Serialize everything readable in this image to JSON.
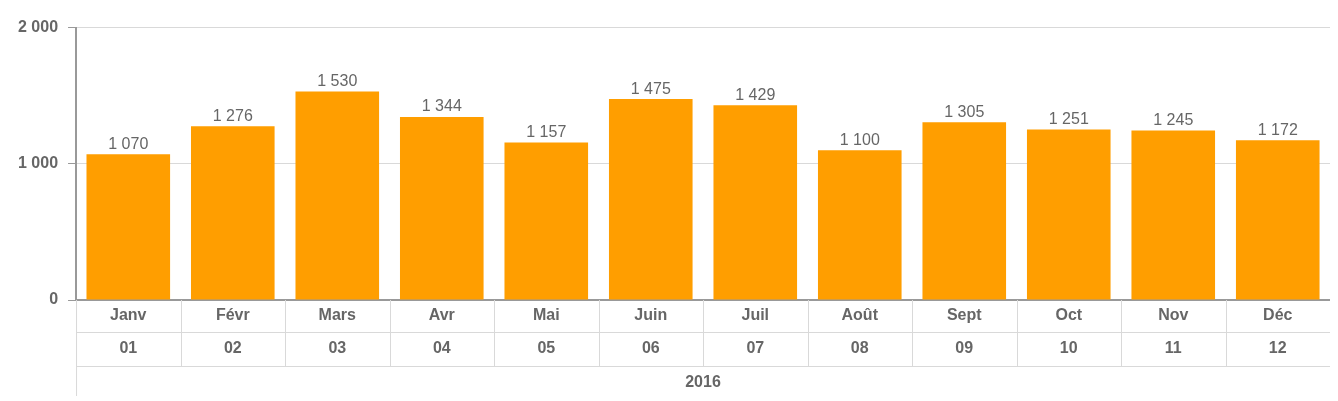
{
  "chart_data": {
    "type": "bar",
    "xlabel": "2016",
    "categories": [
      "Janv",
      "Févr",
      "Mars",
      "Avr",
      "Mai",
      "Juin",
      "Juil",
      "Août",
      "Sept",
      "Oct",
      "Nov",
      "Déc"
    ],
    "values": [
      1070,
      1276,
      1530,
      1344,
      1157,
      1475,
      1429,
      1100,
      1305,
      1251,
      1245,
      1172
    ],
    "value_labels": [
      "1 070",
      "1 276",
      "1 530",
      "1 344",
      "1 157",
      "1 475",
      "1 429",
      "1 100",
      "1 305",
      "1 251",
      "1 245",
      "1 172"
    ],
    "color": "#ff9e00",
    "ylim": [
      0,
      2000
    ],
    "yticks": [
      {
        "value": 0,
        "label": "0"
      },
      {
        "value": 1000,
        "label": "1 000"
      },
      {
        "value": 2000,
        "label": "2 000"
      }
    ],
    "grid": "y",
    "legend": false,
    "annotations": [
      "01",
      "02",
      "03",
      "04",
      "05",
      "06",
      "07",
      "08",
      "09",
      "10",
      "11",
      "12"
    ]
  }
}
